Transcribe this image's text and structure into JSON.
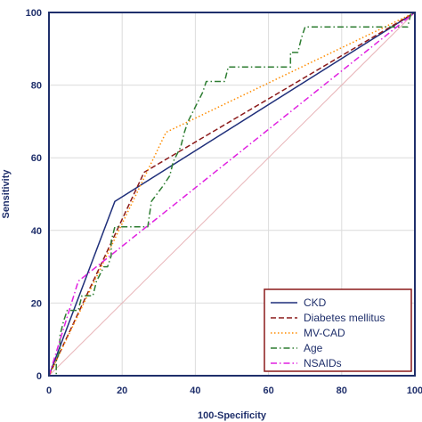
{
  "chart_data": {
    "type": "line",
    "xlabel": "100-Specificity",
    "ylabel": "Sensitivity",
    "xlim": [
      0,
      100
    ],
    "ylim": [
      0,
      100
    ],
    "xticks": [
      "0",
      "20",
      "40",
      "60",
      "80",
      "100"
    ],
    "yticks": [
      "0",
      "20",
      "40",
      "60",
      "80",
      "100"
    ],
    "grid": true,
    "legend_position": "bottom-right",
    "reference_line": {
      "x": [
        0,
        100
      ],
      "y": [
        0,
        100
      ],
      "color": "#e8b4b8"
    },
    "series": [
      {
        "name": "CKD",
        "color": "#1f2f7a",
        "style": "solid",
        "x": [
          0,
          18,
          100
        ],
        "y": [
          0,
          48,
          100
        ]
      },
      {
        "name": "Diabetes mellitus",
        "color": "#8b1a1a",
        "style": "dashed",
        "x": [
          0,
          26,
          100
        ],
        "y": [
          0,
          56,
          100
        ]
      },
      {
        "name": "MV-CAD",
        "color": "#ff8c00",
        "style": "dotted",
        "x": [
          0,
          32,
          100
        ],
        "y": [
          0,
          67,
          100
        ]
      },
      {
        "name": "Age",
        "color": "#2e7d32",
        "style": "dashdot",
        "x": [
          0,
          1,
          2,
          2,
          3,
          3,
          4,
          5,
          8,
          9,
          11,
          12,
          13,
          15,
          16,
          17,
          17,
          18,
          19,
          20,
          21,
          24,
          27,
          28,
          31,
          33,
          34,
          36,
          37,
          38,
          40,
          42,
          43,
          45,
          46,
          47,
          48,
          49,
          50,
          52,
          54,
          55,
          58,
          60,
          62,
          63,
          64,
          65,
          66,
          66,
          67,
          68,
          69,
          70,
          71,
          74,
          78,
          82,
          86,
          90,
          94,
          98,
          99,
          100
        ],
        "y": [
          0,
          0,
          0,
          4,
          7,
          11,
          15,
          18,
          18,
          22,
          22,
          22,
          26,
          30,
          30,
          33,
          37,
          41,
          41,
          41,
          41,
          41,
          41,
          48,
          52,
          55,
          59,
          63,
          67,
          70,
          74,
          78,
          81,
          81,
          81,
          81,
          81,
          85,
          85,
          85,
          85,
          85,
          85,
          85,
          85,
          85,
          85,
          85,
          85,
          89,
          89,
          89,
          93,
          96,
          96,
          96,
          96,
          96,
          96,
          96,
          96,
          96,
          100,
          100
        ]
      },
      {
        "name": "NSAIDs",
        "color": "#e020e0",
        "style": "dashdot",
        "x": [
          0,
          8,
          100
        ],
        "y": [
          0,
          26,
          100
        ]
      }
    ]
  }
}
